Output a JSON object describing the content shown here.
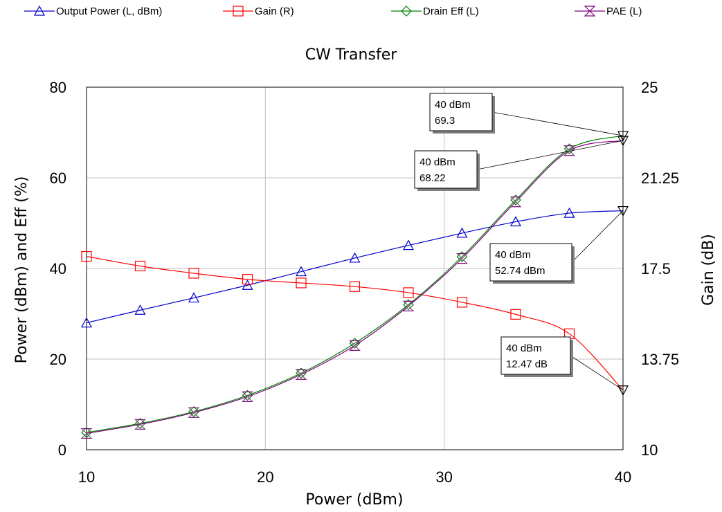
{
  "chart_data": {
    "type": "line",
    "title": "CW Transfer",
    "xlabel": "Power (dBm)",
    "ylabel": "Power (dBm) and Eff (%)",
    "y2label": "Gain (dB)",
    "xlim": [
      10,
      40
    ],
    "ylim": [
      0,
      80
    ],
    "y2lim": [
      10,
      25
    ],
    "x_ticks": [
      "10",
      "20",
      "30",
      "40"
    ],
    "y_ticks": [
      "0",
      "20",
      "40",
      "60",
      "80"
    ],
    "y2_ticks": [
      "10",
      "13.75",
      "17.5",
      "21.25",
      "25"
    ],
    "grid": true,
    "legend_position": "top",
    "x": [
      10,
      13,
      16,
      19,
      22,
      25,
      28,
      31,
      34,
      37,
      40
    ],
    "series": [
      {
        "name": "Output Power (L, dBm)",
        "axis": "left",
        "color": "#0000cc",
        "marker": "triangle-up",
        "values": [
          28.0,
          30.8,
          33.5,
          36.3,
          39.3,
          42.3,
          45.1,
          47.8,
          50.3,
          52.2,
          52.74
        ]
      },
      {
        "name": "Gain (R)",
        "axis": "right",
        "color": "#ff0000",
        "marker": "square",
        "values": [
          18.0,
          17.6,
          17.3,
          17.05,
          16.9,
          16.75,
          16.5,
          16.1,
          15.6,
          14.8,
          12.47
        ]
      },
      {
        "name": "Drain Eff (L)",
        "axis": "left",
        "color": "#008000",
        "marker": "diamond",
        "values": [
          3.8,
          5.8,
          8.4,
          12.0,
          16.9,
          23.5,
          32.0,
          42.6,
          55.1,
          66.4,
          69.3
        ]
      },
      {
        "name": "PAE (L)",
        "axis": "left",
        "color": "#800080",
        "marker": "hourglass",
        "values": [
          3.6,
          5.6,
          8.2,
          11.7,
          16.6,
          23.0,
          31.7,
          42.2,
          54.7,
          66.0,
          68.22
        ]
      }
    ],
    "annotations": [
      {
        "line1": "40 dBm",
        "line2": "69.3",
        "x": 40,
        "y": 69.3,
        "axis": "left"
      },
      {
        "line1": "40 dBm",
        "line2": "68.22",
        "x": 40,
        "y": 68.22,
        "axis": "left"
      },
      {
        "line1": "40 dBm",
        "line2": "52.74 dBm",
        "x": 40,
        "y": 52.74,
        "axis": "left"
      },
      {
        "line1": "40 dBm",
        "line2": "12.47 dB",
        "x": 40,
        "y": 12.47,
        "axis": "right"
      }
    ]
  }
}
